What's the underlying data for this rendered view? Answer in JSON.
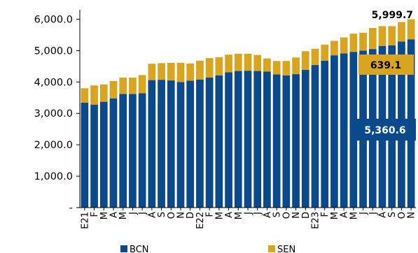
{
  "chart_data": {
    "type": "bar",
    "stacked": true,
    "categories": [
      "E21",
      "F",
      "M",
      "A",
      "M",
      "J",
      "J",
      "A",
      "S",
      "O",
      "N",
      "D",
      "E22",
      "F",
      "M",
      "A",
      "M",
      "J",
      "J",
      "A",
      "S",
      "O",
      "N",
      "D",
      "E23",
      "F",
      "M",
      "A",
      "M",
      "J",
      "J",
      "A",
      "S",
      "O",
      "N"
    ],
    "series": [
      {
        "name": "BCN",
        "color": "#0a4a8a",
        "values": [
          3340,
          3280,
          3370,
          3480,
          3620,
          3620,
          3640,
          4060,
          4070,
          4050,
          4000,
          4040,
          4080,
          4140,
          4210,
          4310,
          4350,
          4360,
          4350,
          4330,
          4240,
          4210,
          4250,
          4390,
          4540,
          4680,
          4850,
          4910,
          4960,
          5000,
          5050,
          5150,
          5170,
          5290,
          5360.6
        ]
      },
      {
        "name": "SEN",
        "color": "#d9a520",
        "values": [
          460,
          610,
          550,
          550,
          520,
          520,
          580,
          520,
          530,
          560,
          610,
          550,
          600,
          620,
          580,
          560,
          550,
          540,
          510,
          420,
          430,
          460,
          530,
          590,
          520,
          510,
          460,
          510,
          580,
          570,
          670,
          630,
          610,
          620,
          639.1
        ]
      }
    ],
    "ylim": [
      0,
      6300
    ],
    "yticks": [
      0,
      1000,
      2000,
      3000,
      4000,
      5000,
      6000
    ],
    "ytick_labels": [
      "-",
      "1,000.0",
      "2,000.0",
      "3,000.0",
      "4,000.0",
      "5,000.0",
      "6,000.0"
    ],
    "annotations": {
      "total": "5,999.7",
      "sen_last": "639.1",
      "bcn_last": "5,360.6"
    },
    "legend_position": "bottom",
    "grid": false
  }
}
